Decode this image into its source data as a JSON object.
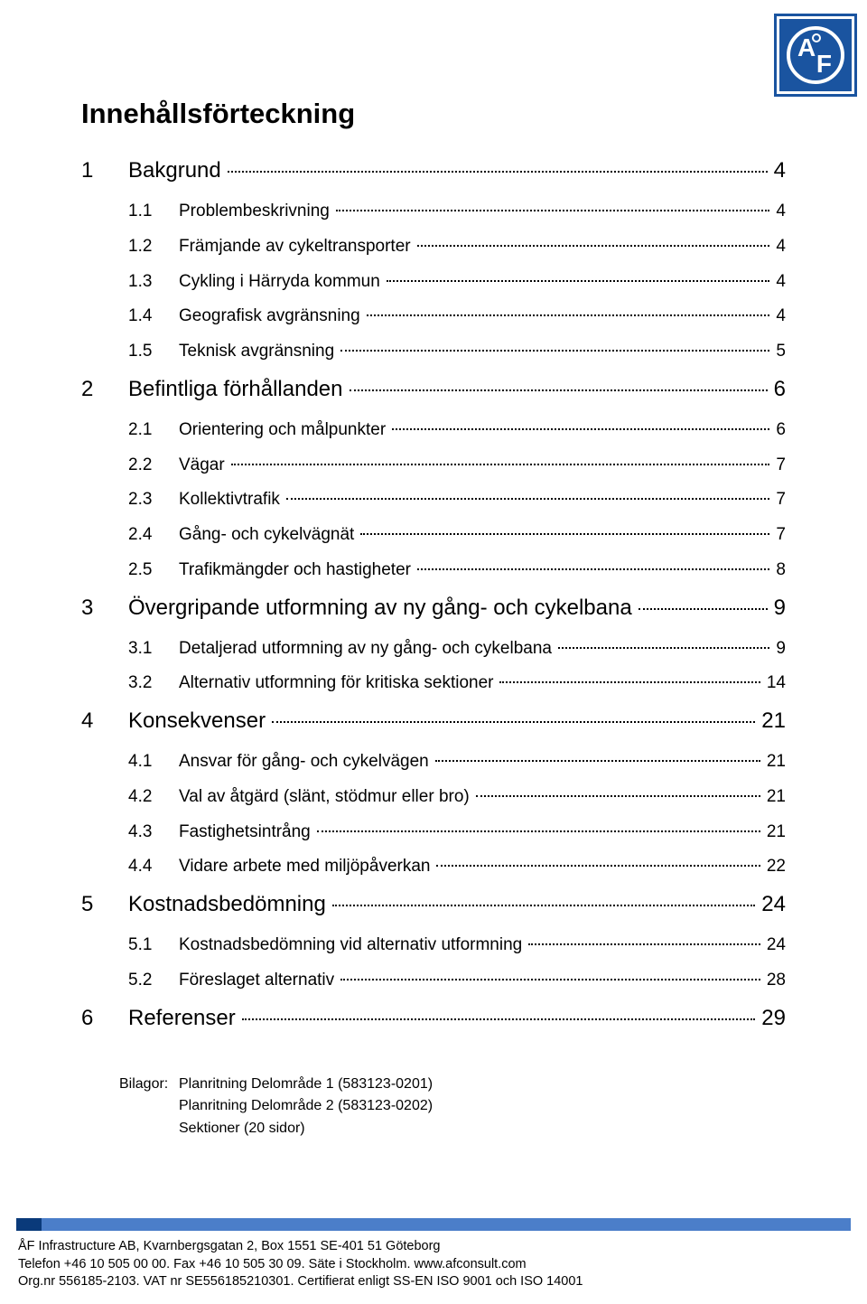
{
  "logo": {
    "letters": [
      "A",
      "F"
    ],
    "bg": "#1a54a0"
  },
  "title": "Innehållsförteckning",
  "toc": [
    {
      "level": 1,
      "num": "1",
      "label": "Bakgrund",
      "page": "4"
    },
    {
      "level": 2,
      "num": "1.1",
      "label": "Problembeskrivning",
      "page": "4"
    },
    {
      "level": 2,
      "num": "1.2",
      "label": "Främjande av cykeltransporter",
      "page": "4"
    },
    {
      "level": 2,
      "num": "1.3",
      "label": "Cykling i Härryda kommun",
      "page": "4"
    },
    {
      "level": 2,
      "num": "1.4",
      "label": "Geografisk avgränsning",
      "page": "4"
    },
    {
      "level": 2,
      "num": "1.5",
      "label": "Teknisk avgränsning",
      "page": "5"
    },
    {
      "level": 1,
      "num": "2",
      "label": "Befintliga förhållanden",
      "page": "6"
    },
    {
      "level": 2,
      "num": "2.1",
      "label": "Orientering och målpunkter",
      "page": "6"
    },
    {
      "level": 2,
      "num": "2.2",
      "label": "Vägar",
      "page": "7"
    },
    {
      "level": 2,
      "num": "2.3",
      "label": "Kollektivtrafik",
      "page": "7"
    },
    {
      "level": 2,
      "num": "2.4",
      "label": "Gång- och cykelvägnät",
      "page": "7"
    },
    {
      "level": 2,
      "num": "2.5",
      "label": "Trafikmängder och hastigheter",
      "page": "8"
    },
    {
      "level": 1,
      "num": "3",
      "label": "Övergripande utformning av ny gång- och cykelbana",
      "page": "9"
    },
    {
      "level": 2,
      "num": "3.1",
      "label": "Detaljerad utformning av ny gång- och cykelbana",
      "page": "9"
    },
    {
      "level": 2,
      "num": "3.2",
      "label": "Alternativ utformning för kritiska sektioner",
      "page": "14"
    },
    {
      "level": 1,
      "num": "4",
      "label": "Konsekvenser",
      "page": "21"
    },
    {
      "level": 2,
      "num": "4.1",
      "label": "Ansvar för gång- och cykelvägen",
      "page": "21"
    },
    {
      "level": 2,
      "num": "4.2",
      "label": "Val av åtgärd (slänt, stödmur eller bro)",
      "page": "21"
    },
    {
      "level": 2,
      "num": "4.3",
      "label": "Fastighetsintrång",
      "page": "21"
    },
    {
      "level": 2,
      "num": "4.4",
      "label": "Vidare arbete med miljöpåverkan",
      "page": "22"
    },
    {
      "level": 1,
      "num": "5",
      "label": "Kostnadsbedömning",
      "page": "24"
    },
    {
      "level": 2,
      "num": "5.1",
      "label": "Kostnadsbedömning vid alternativ utformning",
      "page": "24"
    },
    {
      "level": 2,
      "num": "5.2",
      "label": "Föreslaget alternativ",
      "page": "28"
    },
    {
      "level": 1,
      "num": "6",
      "label": "Referenser",
      "page": "29"
    }
  ],
  "bilagor": {
    "lead": "Bilagor:",
    "items": [
      "Planritning Delområde 1 (583123-0201)",
      "Planritning Delområde 2 (583123-0202)",
      "Sektioner (20 sidor)"
    ]
  },
  "footer": {
    "bar_colors": {
      "seg1": "#0a3a7a",
      "seg2": "#4b7ec9"
    },
    "lines": [
      "ÅF Infrastructure AB, Kvarnbergsgatan 2, Box 1551 SE-401 51 Göteborg",
      "Telefon +46 10 505 00 00. Fax +46 10 505 30 09. Säte i Stockholm. www.afconsult.com",
      "Org.nr 556185-2103. VAT nr SE556185210301. Certifierat enligt SS-EN ISO 9001 och ISO 14001"
    ]
  }
}
